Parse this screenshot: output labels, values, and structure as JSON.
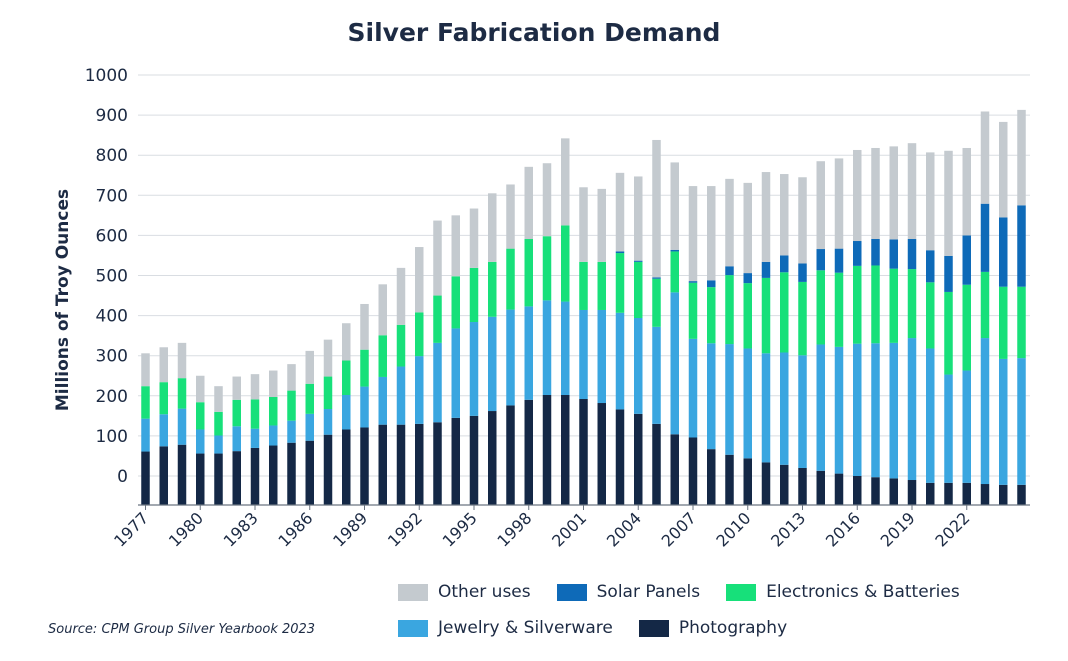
{
  "chart_data": {
    "type": "bar",
    "stacked": true,
    "title": "Silver Fabrication Demand",
    "ylabel": "Millions of Troy Ounces",
    "xlabel": "",
    "ylim": [
      -70,
      1000
    ],
    "yticks": [
      0,
      100,
      200,
      300,
      400,
      500,
      600,
      700,
      800,
      900,
      1000
    ],
    "ytick_labels": [
      "0",
      "100",
      "200",
      "300",
      "400",
      "500",
      "600",
      "700",
      "800",
      "900",
      "1000"
    ],
    "x_tick_labels": [
      "1977",
      "1980",
      "1983",
      "1986",
      "1989",
      "1992",
      "1995",
      "1998",
      "2001",
      "2004",
      "2007",
      "2010",
      "2013",
      "2016",
      "2019",
      "2022"
    ],
    "categories": [
      "1977",
      "1978",
      "1979",
      "1980",
      "1981",
      "1982",
      "1983",
      "1984",
      "1985",
      "1986",
      "1987",
      "1988",
      "1989",
      "1990",
      "1991",
      "1992",
      "1993",
      "1994",
      "1995",
      "1996",
      "1997",
      "1998",
      "1999",
      "2000",
      "2001",
      "2002",
      "2003",
      "2004",
      "2005",
      "2006",
      "2007",
      "2008",
      "2009",
      "2010",
      "2011",
      "2012",
      "2013",
      "2014",
      "2015",
      "2016",
      "2017",
      "2018",
      "2019",
      "2020",
      "2021",
      "2022",
      "2023",
      "2024",
      "2025"
    ],
    "series": [
      {
        "name": "Photography",
        "color": "#142846",
        "values": [
          61,
          74,
          78,
          56,
          56,
          62,
          70,
          76,
          83,
          88,
          103,
          116,
          121,
          128,
          128,
          130,
          134,
          145,
          150,
          162,
          176,
          190,
          202,
          202,
          192,
          182,
          166,
          155,
          130,
          104,
          96,
          67,
          53,
          44,
          34,
          28,
          20,
          13,
          6,
          0,
          -3,
          -6,
          -10,
          -17,
          -17,
          -17,
          -20,
          -22,
          -22
        ]
      },
      {
        "name": "Jewelry & Silverware",
        "color": "#3aa6e0",
        "values": [
          82,
          80,
          90,
          60,
          45,
          62,
          48,
          50,
          55,
          67,
          64,
          86,
          102,
          119,
          145,
          169,
          198,
          223,
          234,
          235,
          239,
          233,
          236,
          233,
          222,
          232,
          241,
          239,
          242,
          354,
          246,
          264,
          276,
          274,
          272,
          280,
          281,
          315,
          316,
          330,
          334,
          338,
          354,
          335,
          270,
          280,
          364,
          314,
          316
        ]
      },
      {
        "name": "Electronics & Batteries",
        "color": "#17e07a",
        "values": [
          81,
          80,
          76,
          68,
          59,
          66,
          73,
          71,
          75,
          75,
          81,
          86,
          92,
          104,
          104,
          109,
          118,
          130,
          135,
          137,
          152,
          168,
          160,
          190,
          120,
          120,
          149,
          140,
          120,
          102,
          140,
          140,
          172,
          163,
          188,
          200,
          183,
          185,
          185,
          194,
          194,
          185,
          172,
          165,
          206,
          214,
          165,
          180,
          178
        ]
      },
      {
        "name": "Solar Panels",
        "color": "#0e6ab8",
        "values": [
          0,
          0,
          0,
          0,
          0,
          0,
          0,
          0,
          0,
          0,
          0,
          0,
          0,
          0,
          0,
          0,
          0,
          0,
          0,
          0,
          0,
          0,
          0,
          0,
          0,
          0,
          4,
          3,
          3,
          4,
          4,
          17,
          22,
          25,
          40,
          42,
          46,
          53,
          60,
          62,
          66,
          73,
          75,
          80,
          90,
          123,
          170,
          173,
          203
        ]
      },
      {
        "name": "Other uses",
        "color": "#c4cacf",
        "values": [
          82,
          87,
          88,
          66,
          64,
          58,
          63,
          66,
          66,
          82,
          92,
          93,
          114,
          127,
          142,
          163,
          187,
          152,
          148,
          171,
          160,
          180,
          182,
          217,
          186,
          182,
          196,
          210,
          343,
          218,
          237,
          235,
          218,
          225,
          224,
          203,
          215,
          219,
          225,
          227,
          227,
          232,
          239,
          244,
          262,
          218,
          230,
          238,
          238
        ]
      }
    ],
    "legend": [
      {
        "label": "Other uses",
        "color": "#c4cacf"
      },
      {
        "label": "Solar Panels",
        "color": "#0e6ab8"
      },
      {
        "label": "Electronics & Batteries",
        "color": "#17e07a"
      },
      {
        "label": "Jewelry & Silverware",
        "color": "#3aa6e0"
      },
      {
        "label": "Photography",
        "color": "#142846"
      }
    ],
    "grid": true,
    "legend_position": "bottom-right"
  },
  "source_text": "Source: CPM Group Silver Yearbook 2023"
}
